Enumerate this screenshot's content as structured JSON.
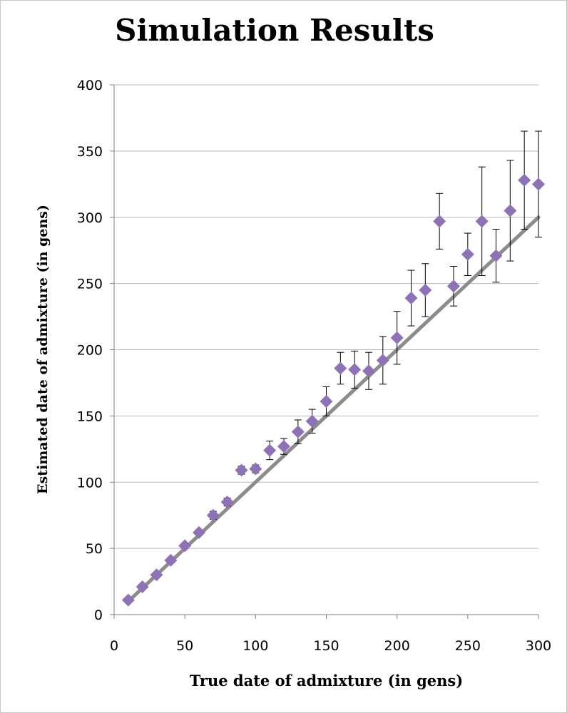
{
  "chart_data": {
    "type": "scatter",
    "title": "Simulation Results",
    "xlabel": "True date of admixture (in gens)",
    "ylabel": "Estimated date of admixture (in gens)",
    "xlim": [
      0,
      300
    ],
    "ylim": [
      0,
      400
    ],
    "xticks": [
      0,
      50,
      100,
      150,
      200,
      250,
      300
    ],
    "yticks": [
      0,
      50,
      100,
      150,
      200,
      250,
      300,
      350,
      400
    ],
    "grid": "horizontal",
    "legend": "none",
    "marker_color": "#8e72b8",
    "reference_line": {
      "from": [
        10,
        10
      ],
      "to": [
        300,
        300
      ],
      "color": "#8c8c8c"
    },
    "points": [
      {
        "x": 10,
        "y": 11,
        "err": 1
      },
      {
        "x": 20,
        "y": 21,
        "err": 1
      },
      {
        "x": 30,
        "y": 30,
        "err": 1
      },
      {
        "x": 40,
        "y": 41,
        "err": 2
      },
      {
        "x": 50,
        "y": 52,
        "err": 2
      },
      {
        "x": 60,
        "y": 62,
        "err": 2
      },
      {
        "x": 70,
        "y": 75,
        "err": 3
      },
      {
        "x": 80,
        "y": 85,
        "err": 3
      },
      {
        "x": 90,
        "y": 109,
        "err": 3
      },
      {
        "x": 100,
        "y": 110,
        "err": 3
      },
      {
        "x": 110,
        "y": 124,
        "err": 7
      },
      {
        "x": 120,
        "y": 127,
        "err": 6
      },
      {
        "x": 130,
        "y": 138,
        "err": 9
      },
      {
        "x": 140,
        "y": 146,
        "err": 9
      },
      {
        "x": 150,
        "y": 161,
        "err": 11
      },
      {
        "x": 160,
        "y": 186,
        "err": 12
      },
      {
        "x": 170,
        "y": 185,
        "err": 14
      },
      {
        "x": 180,
        "y": 184,
        "err": 14
      },
      {
        "x": 190,
        "y": 192,
        "err": 18
      },
      {
        "x": 200,
        "y": 209,
        "err": 20
      },
      {
        "x": 210,
        "y": 239,
        "err": 21
      },
      {
        "x": 220,
        "y": 245,
        "err": 20
      },
      {
        "x": 230,
        "y": 297,
        "err": 21
      },
      {
        "x": 240,
        "y": 248,
        "err": 15
      },
      {
        "x": 250,
        "y": 272,
        "err": 16
      },
      {
        "x": 260,
        "y": 297,
        "err": 41
      },
      {
        "x": 270,
        "y": 271,
        "err": 20
      },
      {
        "x": 280,
        "y": 305,
        "err": 38
      },
      {
        "x": 290,
        "y": 328,
        "err": 37
      },
      {
        "x": 300,
        "y": 325,
        "err": 40
      }
    ]
  }
}
